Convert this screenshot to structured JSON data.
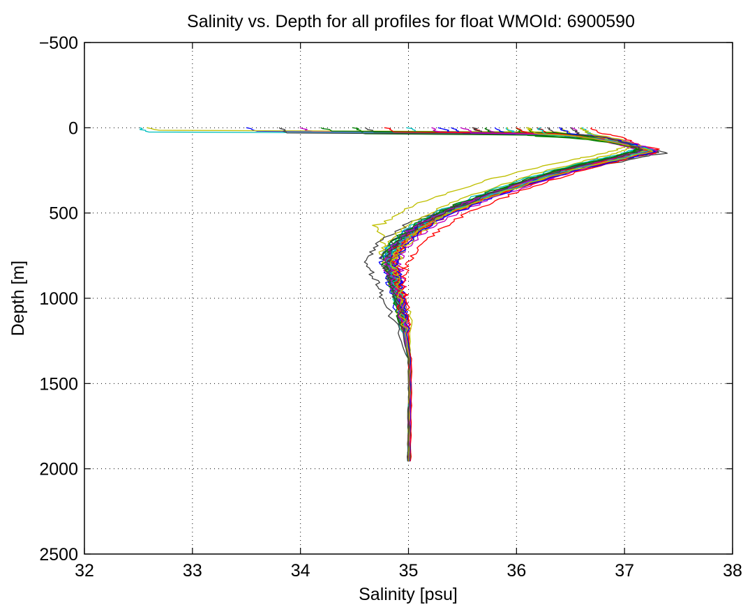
{
  "chart_data": {
    "type": "line",
    "title": "Salinity vs. Depth for all profiles for float WMOId: 6900590",
    "xlabel": "Salinity [psu]",
    "ylabel": "Depth [m]",
    "xlim": [
      32,
      38
    ],
    "ylim": [
      -500,
      2500
    ],
    "y_reversed": true,
    "grid": true,
    "xticks": [
      32,
      33,
      34,
      35,
      36,
      37,
      38
    ],
    "yticks": [
      -500,
      0,
      500,
      1000,
      1500,
      2000,
      2500
    ],
    "xtick_labels": [
      "32",
      "33",
      "34",
      "35",
      "36",
      "37",
      "38"
    ],
    "ytick_labels": [
      "−500",
      "0",
      "500",
      "1000",
      "1500",
      "2000",
      "2500"
    ],
    "series_colors": [
      "#0000ff",
      "#008000",
      "#ff0000",
      "#00bfbf",
      "#bf00bf",
      "#bfbf00",
      "#404040"
    ],
    "profile_count": 35,
    "representative_profile": {
      "depth": [
        0,
        10,
        30,
        50,
        70,
        90,
        110,
        140,
        170,
        200,
        250,
        300,
        350,
        400,
        450,
        500,
        550,
        600,
        650,
        700,
        750,
        800,
        850,
        900,
        950,
        1000,
        1050,
        1100,
        1150,
        1200,
        1250,
        1300,
        1350,
        1400,
        1500,
        1600,
        1700,
        1800,
        1900,
        1975
      ],
      "salinity": [
        34.6,
        35.3,
        36.3,
        36.9,
        37.1,
        37.2,
        37.25,
        37.2,
        37.0,
        36.75,
        36.35,
        36.05,
        35.8,
        35.55,
        35.35,
        35.15,
        35.0,
        34.9,
        34.82,
        34.78,
        34.77,
        34.77,
        34.78,
        34.8,
        34.83,
        34.86,
        34.9,
        34.93,
        34.96,
        34.98,
        34.99,
        35.0,
        35.0,
        35.01,
        35.01,
        35.01,
        35.0,
        35.0,
        34.99,
        34.99
      ]
    },
    "series": [
      {
        "color": "#0000ff",
        "surface_salinity": 33.5,
        "mode_depth": 20,
        "peak_salinity": 37.25,
        "peak_depth": 125,
        "min_salinity": 34.75,
        "min_depth": 800,
        "deep_offset": 0.0
      },
      {
        "color": "#008000",
        "surface_salinity": 34.5,
        "mode_depth": 35,
        "peak_salinity": 37.2,
        "peak_depth": 115,
        "min_salinity": 34.85,
        "min_depth": 780,
        "deep_offset": 0.005
      },
      {
        "color": "#ff0000",
        "surface_salinity": 35.6,
        "mode_depth": 30,
        "peak_salinity": 37.3,
        "peak_depth": 140,
        "min_salinity": 34.9,
        "min_depth": 760,
        "deep_offset": 0.01
      },
      {
        "color": "#00bfbf",
        "surface_salinity": 32.5,
        "mode_depth": 25,
        "peak_salinity": 37.15,
        "peak_depth": 120,
        "min_salinity": 34.8,
        "min_depth": 820,
        "deep_offset": -0.005
      },
      {
        "color": "#bf00bf",
        "surface_salinity": 34.0,
        "mode_depth": 20,
        "peak_salinity": 37.28,
        "peak_depth": 145,
        "min_salinity": 34.88,
        "min_depth": 790,
        "deep_offset": 0.0
      },
      {
        "color": "#bfbf00",
        "surface_salinity": 32.6,
        "mode_depth": 15,
        "peak_salinity": 37.05,
        "peak_depth": 100,
        "min_salinity": 34.68,
        "min_depth": 560,
        "deep_offset": 0.01
      },
      {
        "color": "#404040",
        "surface_salinity": 33.8,
        "mode_depth": 30,
        "peak_salinity": 37.4,
        "peak_depth": 150,
        "min_salinity": 34.6,
        "min_depth": 810,
        "deep_offset": -0.01
      },
      {
        "color": "#0000ff",
        "surface_salinity": 35.3,
        "mode_depth": 25,
        "peak_salinity": 37.22,
        "peak_depth": 135,
        "min_salinity": 34.82,
        "min_depth": 770,
        "deep_offset": 0.005
      },
      {
        "color": "#008000",
        "surface_salinity": 36.0,
        "mode_depth": 45,
        "peak_salinity": 37.18,
        "peak_depth": 115,
        "min_salinity": 34.78,
        "min_depth": 800,
        "deep_offset": 0.0
      },
      {
        "color": "#ff0000",
        "surface_salinity": 36.2,
        "mode_depth": 40,
        "peak_salinity": 37.3,
        "peak_depth": 125,
        "min_salinity": 34.86,
        "min_depth": 830,
        "deep_offset": 0.005
      },
      {
        "color": "#00bfbf",
        "surface_salinity": 36.6,
        "mode_depth": 40,
        "peak_salinity": 37.2,
        "peak_depth": 140,
        "min_salinity": 34.8,
        "min_depth": 780,
        "deep_offset": -0.005
      },
      {
        "color": "#bf00bf",
        "surface_salinity": 35.7,
        "mode_depth": 30,
        "peak_salinity": 37.25,
        "peak_depth": 155,
        "min_salinity": 34.92,
        "min_depth": 810,
        "deep_offset": 0.01
      },
      {
        "color": "#bfbf00",
        "surface_salinity": 36.4,
        "mode_depth": 35,
        "peak_salinity": 37.08,
        "peak_depth": 110,
        "min_salinity": 34.75,
        "min_depth": 760,
        "deep_offset": 0.0
      },
      {
        "color": "#404040",
        "surface_salinity": 34.6,
        "mode_depth": 25,
        "peak_salinity": 37.32,
        "peak_depth": 145,
        "min_salinity": 34.82,
        "min_depth": 790,
        "deep_offset": -0.005
      },
      {
        "color": "#0000ff",
        "surface_salinity": 35.8,
        "mode_depth": 35,
        "peak_salinity": 37.18,
        "peak_depth": 125,
        "min_salinity": 34.88,
        "min_depth": 800,
        "deep_offset": 0.005
      },
      {
        "color": "#008000",
        "surface_salinity": 36.1,
        "mode_depth": 50,
        "peak_salinity": 37.22,
        "peak_depth": 130,
        "min_salinity": 34.8,
        "min_depth": 830,
        "deep_offset": 0.01
      },
      {
        "color": "#ff0000",
        "surface_salinity": 36.7,
        "mode_depth": 30,
        "peak_salinity": 37.27,
        "peak_depth": 150,
        "min_salinity": 34.95,
        "min_depth": 900,
        "deep_offset": 0.02
      },
      {
        "color": "#00bfbf",
        "surface_salinity": 35.0,
        "mode_depth": 25,
        "peak_salinity": 37.12,
        "peak_depth": 120,
        "min_salinity": 34.78,
        "min_depth": 770,
        "deep_offset": 0.0
      },
      {
        "color": "#bf00bf",
        "surface_salinity": 36.5,
        "mode_depth": 40,
        "peak_salinity": 37.3,
        "peak_depth": 135,
        "min_salinity": 34.85,
        "min_depth": 800,
        "deep_offset": -0.005
      },
      {
        "color": "#bfbf00",
        "surface_salinity": 35.9,
        "mode_depth": 35,
        "peak_salinity": 37.15,
        "peak_depth": 125,
        "min_salinity": 34.9,
        "min_depth": 820,
        "deep_offset": 0.005
      },
      {
        "color": "#404040",
        "surface_salinity": 36.3,
        "mode_depth": 45,
        "peak_salinity": 37.2,
        "peak_depth": 140,
        "min_salinity": 34.76,
        "min_depth": 790,
        "deep_offset": 0.0
      },
      {
        "color": "#0000ff",
        "surface_salinity": 35.4,
        "mode_depth": 30,
        "peak_salinity": 37.24,
        "peak_depth": 130,
        "min_salinity": 34.84,
        "min_depth": 780,
        "deep_offset": 0.01
      },
      {
        "color": "#008000",
        "surface_salinity": 34.2,
        "mode_depth": 20,
        "peak_salinity": 37.16,
        "peak_depth": 120,
        "min_salinity": 34.8,
        "min_depth": 810,
        "deep_offset": -0.005
      },
      {
        "color": "#ff0000",
        "surface_salinity": 36.0,
        "mode_depth": 30,
        "peak_salinity": 37.26,
        "peak_depth": 145,
        "min_salinity": 34.87,
        "min_depth": 800,
        "deep_offset": 0.0
      },
      {
        "color": "#00bfbf",
        "surface_salinity": 35.9,
        "mode_depth": 35,
        "peak_salinity": 37.21,
        "peak_depth": 125,
        "min_salinity": 34.83,
        "min_depth": 790,
        "deep_offset": 0.005
      },
      {
        "color": "#bf00bf",
        "surface_salinity": 35.2,
        "mode_depth": 25,
        "peak_salinity": 37.19,
        "peak_depth": 135,
        "min_salinity": 34.79,
        "min_depth": 820,
        "deep_offset": 0.0
      },
      {
        "color": "#bfbf00",
        "surface_salinity": 36.6,
        "mode_depth": 40,
        "peak_salinity": 37.23,
        "peak_depth": 130,
        "min_salinity": 34.86,
        "min_depth": 800,
        "deep_offset": -0.005
      },
      {
        "color": "#404040",
        "surface_salinity": 35.6,
        "mode_depth": 30,
        "peak_salinity": 37.17,
        "peak_depth": 120,
        "min_salinity": 34.81,
        "min_depth": 780,
        "deep_offset": 0.005
      },
      {
        "color": "#0000ff",
        "surface_salinity": 36.4,
        "mode_depth": 35,
        "peak_salinity": 37.29,
        "peak_depth": 140,
        "min_salinity": 34.89,
        "min_depth": 810,
        "deep_offset": 0.0
      },
      {
        "color": "#008000",
        "surface_salinity": 35.7,
        "mode_depth": 30,
        "peak_salinity": 37.14,
        "peak_depth": 125,
        "min_salinity": 34.77,
        "min_depth": 790,
        "deep_offset": 0.005
      },
      {
        "color": "#ff0000",
        "surface_salinity": 34.8,
        "mode_depth": 25,
        "peak_salinity": 37.22,
        "peak_depth": 135,
        "min_salinity": 34.84,
        "min_depth": 800,
        "deep_offset": -0.005
      },
      {
        "color": "#00bfbf",
        "surface_salinity": 36.2,
        "mode_depth": 40,
        "peak_salinity": 37.25,
        "peak_depth": 130,
        "min_salinity": 34.82,
        "min_depth": 810,
        "deep_offset": 0.0
      },
      {
        "color": "#bf00bf",
        "surface_salinity": 35.5,
        "mode_depth": 30,
        "peak_salinity": 37.2,
        "peak_depth": 125,
        "min_salinity": 34.8,
        "min_depth": 790,
        "deep_offset": 0.005
      },
      {
        "color": "#bfbf00",
        "surface_salinity": 36.1,
        "mode_depth": 35,
        "peak_salinity": 37.26,
        "peak_depth": 140,
        "min_salinity": 34.86,
        "min_depth": 800,
        "deep_offset": 0.0
      },
      {
        "color": "#404040",
        "surface_salinity": 36.5,
        "mode_depth": 40,
        "peak_salinity": 37.18,
        "peak_depth": 130,
        "min_salinity": 34.79,
        "min_depth": 820,
        "deep_offset": -0.005
      }
    ]
  }
}
